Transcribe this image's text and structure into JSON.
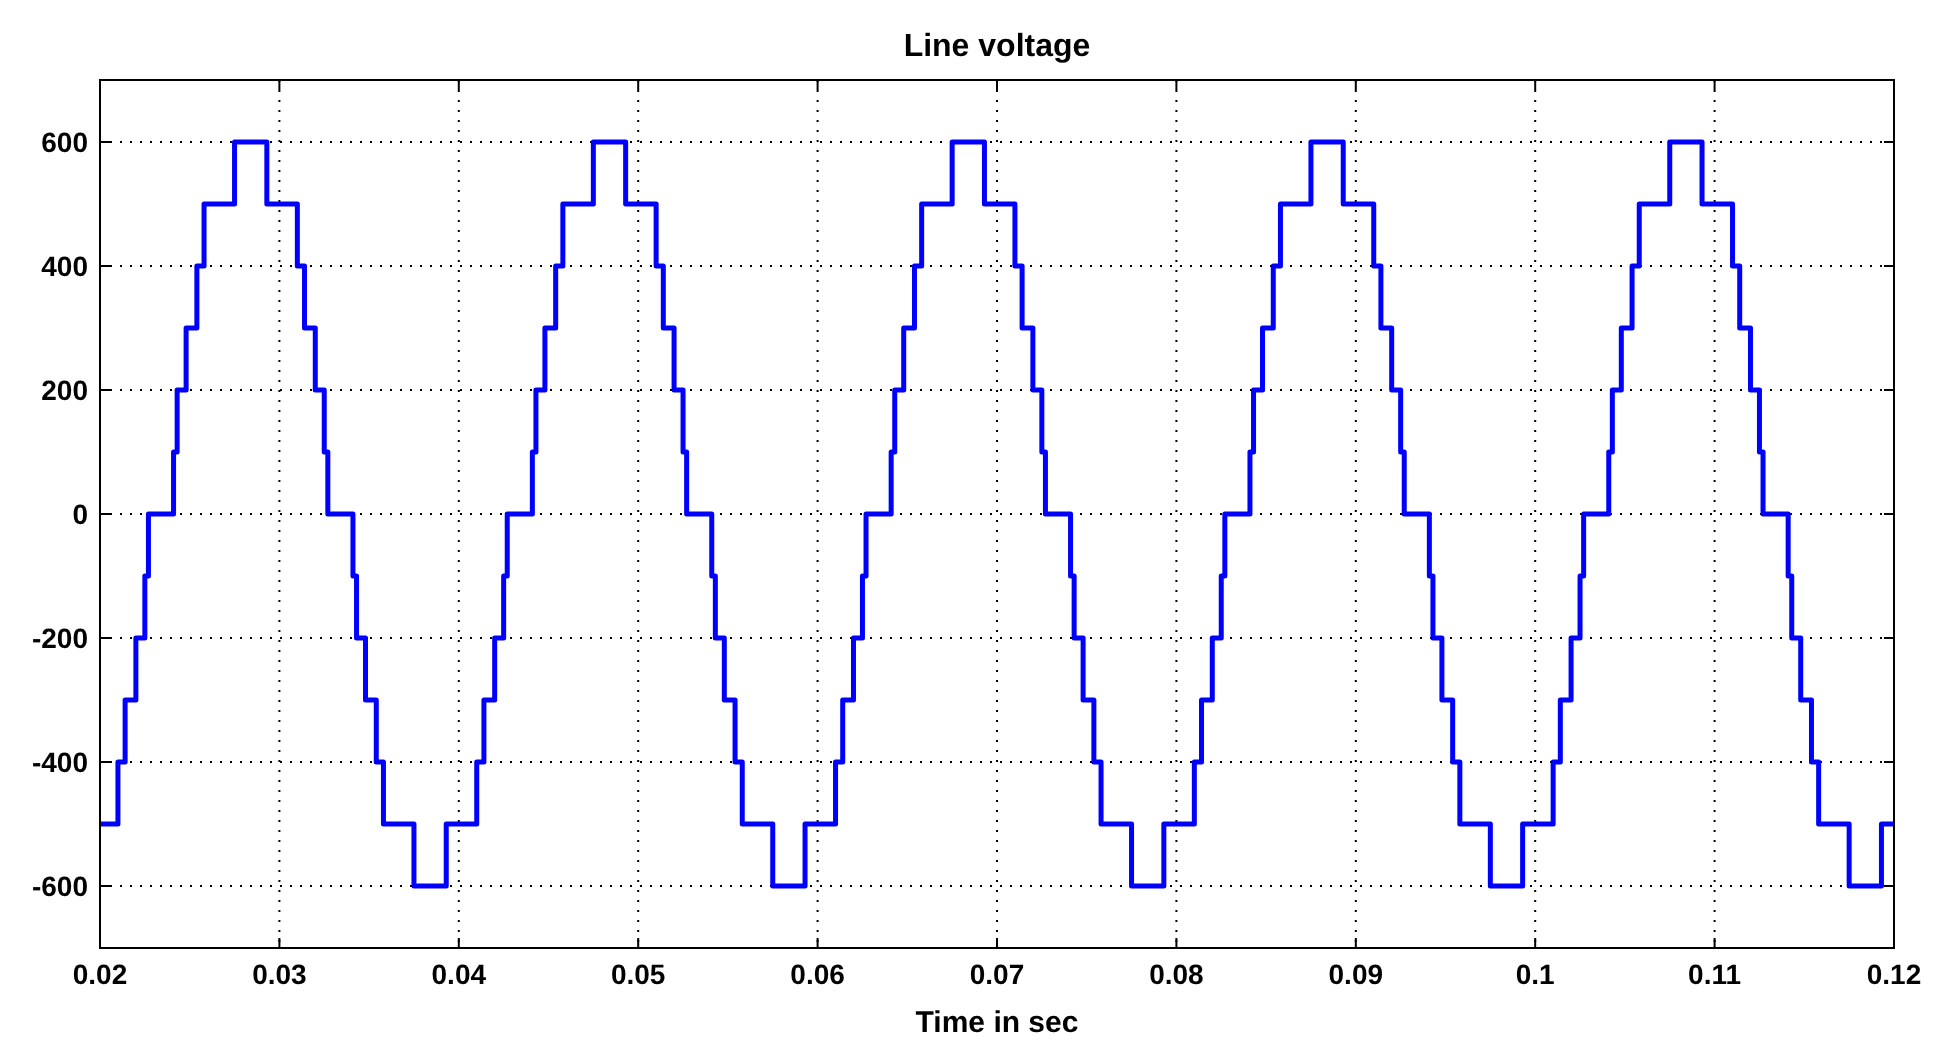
{
  "chart_data": {
    "type": "step",
    "title": "Line voltage",
    "xlabel": "Time in sec",
    "xlim": [
      0.02,
      0.12
    ],
    "xticks": [
      0.02,
      0.03,
      0.04,
      0.05,
      0.06,
      0.07,
      0.08,
      0.09,
      0.1,
      0.11,
      0.12
    ],
    "ylim": [
      -700,
      700
    ],
    "yticks": [
      -600,
      -400,
      -200,
      0,
      200,
      400,
      600
    ],
    "grid": true,
    "line_style": "solid",
    "marker": "none",
    "series": [
      {
        "color": "#0000ff",
        "x": [
          0.02,
          0.021,
          0.0214,
          0.022,
          0.0225,
          0.0227,
          0.0241,
          0.0243,
          0.0248,
          0.0254,
          0.0258,
          0.0275,
          0.0293,
          0.031,
          0.0314,
          0.032,
          0.0325,
          0.0327,
          0.0341,
          0.0343,
          0.0348,
          0.0354,
          0.0358,
          0.0375,
          0.0393,
          0.041,
          0.0414,
          0.042,
          0.0425,
          0.0427,
          0.0441,
          0.0443,
          0.0448,
          0.0454,
          0.0458,
          0.0475,
          0.0493,
          0.051,
          0.0514,
          0.052,
          0.0525,
          0.0527,
          0.0541,
          0.0543,
          0.0548,
          0.0554,
          0.0558,
          0.0575,
          0.0593,
          0.061,
          0.0614,
          0.062,
          0.0625,
          0.0627,
          0.0641,
          0.0643,
          0.0648,
          0.0654,
          0.0658,
          0.0675,
          0.0693,
          0.071,
          0.0714,
          0.072,
          0.0725,
          0.0727,
          0.0741,
          0.0743,
          0.0748,
          0.0754,
          0.0758,
          0.0775,
          0.0793,
          0.081,
          0.0814,
          0.082,
          0.0825,
          0.0827,
          0.0841,
          0.0843,
          0.0848,
          0.0854,
          0.0858,
          0.0875,
          0.0893,
          0.091,
          0.0914,
          0.092,
          0.0925,
          0.0927,
          0.0941,
          0.0943,
          0.0948,
          0.0954,
          0.0958,
          0.0975,
          0.0993,
          0.101,
          0.1014,
          0.102,
          0.1025,
          0.1027,
          0.1041,
          0.1043,
          0.1048,
          0.1054,
          0.1058,
          0.1075,
          0.1093,
          0.111,
          0.1114,
          0.112,
          0.1125,
          0.1127,
          0.1141,
          0.1143,
          0.1148,
          0.1154,
          0.1158,
          0.1175,
          0.1193,
          0.12
        ],
        "values": [
          -500,
          -400,
          -300,
          -200,
          -100,
          0,
          100,
          200,
          300,
          400,
          500,
          600,
          500,
          400,
          300,
          200,
          100,
          0,
          -100,
          -200,
          -300,
          -400,
          -500,
          -600,
          -500,
          -400,
          -300,
          -200,
          -100,
          0,
          100,
          200,
          300,
          400,
          500,
          600,
          500,
          400,
          300,
          200,
          100,
          0,
          -100,
          -200,
          -300,
          -400,
          -500,
          -600,
          -500,
          -400,
          -300,
          -200,
          -100,
          0,
          100,
          200,
          300,
          400,
          500,
          600,
          500,
          400,
          300,
          200,
          100,
          0,
          -100,
          -200,
          -300,
          -400,
          -500,
          -600,
          -500,
          -400,
          -300,
          -200,
          -100,
          0,
          100,
          200,
          300,
          400,
          500,
          600,
          500,
          400,
          300,
          200,
          100,
          0,
          -100,
          -200,
          -300,
          -400,
          -500,
          -600,
          -500,
          -400,
          -300,
          -200,
          -100,
          0,
          100,
          200,
          300,
          400,
          500,
          600,
          500,
          400,
          300,
          200,
          100,
          0,
          -100,
          -200,
          -300,
          -400,
          -500,
          -600,
          -500,
          -500
        ]
      }
    ]
  }
}
